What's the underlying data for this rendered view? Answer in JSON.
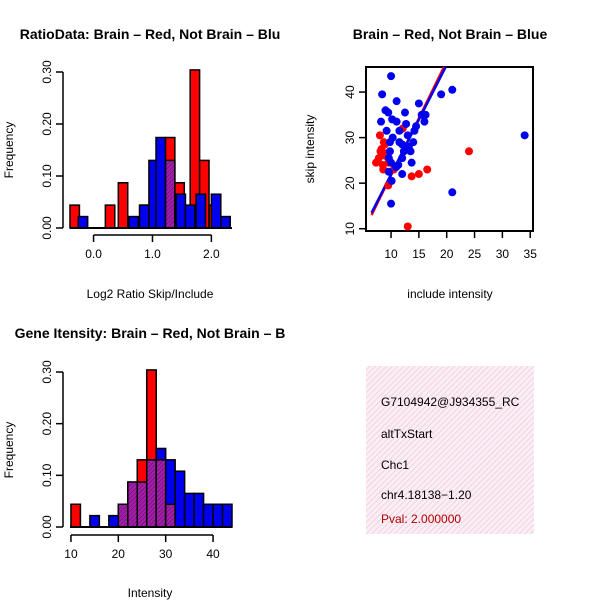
{
  "colors": {
    "red": "#ff0000",
    "blue": "#0000ee",
    "overlap": "#9a1aa0",
    "info_bg": "#f8e6f0",
    "pval": "#b00000"
  },
  "chart_data": [
    {
      "id": "ratio_hist",
      "type": "bar",
      "title": "RatioData: Brain – Red, Not Brain – Blu",
      "xlabel": "Log2 Ratio Skip/Include",
      "ylabel": "Frequency",
      "xlim": [
        -0.4,
        2.35
      ],
      "ylim": [
        0,
        0.3
      ],
      "xticks": [
        0.0,
        1.0,
        2.0
      ],
      "xtick_labels": [
        "0.0",
        "1.0",
        "2.0"
      ],
      "yticks": [
        0.0,
        0.1,
        0.2,
        0.3
      ],
      "ytick_labels": [
        "0.00",
        "0.10",
        "0.20",
        "0.30"
      ],
      "bin_width": 0.16,
      "series": [
        {
          "name": "Brain",
          "color": "red",
          "bins": [
            [
              -0.4,
              0.044
            ],
            [
              0.2,
              0.044
            ],
            [
              0.42,
              0.087
            ],
            [
              0.8,
              0.044
            ],
            [
              1.22,
              0.174
            ],
            [
              1.38,
              0.087
            ],
            [
              1.64,
              0.304
            ],
            [
              1.8,
              0.13
            ],
            [
              1.96,
              0.044
            ]
          ]
        },
        {
          "name": "Not Brain",
          "color": "blue",
          "bins": [
            [
              -0.26,
              0.022
            ],
            [
              0.6,
              0.022
            ],
            [
              0.78,
              0.044
            ],
            [
              0.94,
              0.13
            ],
            [
              1.06,
              0.174
            ],
            [
              1.22,
              0.13
            ],
            [
              1.4,
              0.065
            ],
            [
              1.56,
              0.044
            ],
            [
              1.74,
              0.065
            ],
            [
              2.0,
              0.065
            ],
            [
              2.16,
              0.022
            ]
          ]
        }
      ]
    },
    {
      "id": "scatter",
      "type": "scatter",
      "title": "Brain – Red, Not Brain – Blue",
      "xlabel": "include intensity",
      "ylabel": "skip intensity",
      "xlim": [
        5.5,
        35.5
      ],
      "ylim": [
        9.5,
        45.5
      ],
      "xticks": [
        10,
        15,
        20,
        25,
        30,
        35
      ],
      "yticks": [
        10,
        20,
        30,
        40
      ],
      "series": [
        {
          "name": "Brain",
          "color": "red",
          "points": [
            [
              7.3,
              24.5
            ],
            [
              7.8,
              25.5
            ],
            [
              8.0,
              30.5
            ],
            [
              8.3,
              27.5
            ],
            [
              8.5,
              24.0
            ],
            [
              8.7,
              29.0
            ],
            [
              8.9,
              28.5
            ],
            [
              9.0,
              26.0
            ],
            [
              9.3,
              26.5
            ],
            [
              9.5,
              24.5
            ],
            [
              9.5,
              19.5
            ],
            [
              8.6,
              23.0
            ],
            [
              10.5,
              23.0
            ],
            [
              12.1,
              32.0
            ],
            [
              13.0,
              10.5
            ],
            [
              13.7,
              21.5
            ],
            [
              15.0,
              22.0
            ],
            [
              16.5,
              23.0
            ],
            [
              24.0,
              27.0
            ],
            [
              8.1,
              27.0
            ]
          ]
        },
        {
          "name": "Not Brain",
          "color": "blue",
          "points": [
            [
              8.4,
              39.5
            ],
            [
              8.2,
              33.5
            ],
            [
              9.0,
              36.0
            ],
            [
              9.2,
              31.5
            ],
            [
              9.5,
              35.5
            ],
            [
              10.0,
              43.5
            ],
            [
              10.2,
              34.0
            ],
            [
              9.8,
              29.0
            ],
            [
              9.8,
              27.0
            ],
            [
              9.6,
              25.5
            ],
            [
              10.3,
              30.0
            ],
            [
              10.0,
              24.5
            ],
            [
              9.6,
              22.5
            ],
            [
              10.1,
              20.5
            ],
            [
              10.0,
              15.5
            ],
            [
              11.0,
              38.0
            ],
            [
              11.0,
              33.5
            ],
            [
              11.5,
              31.5
            ],
            [
              11.3,
              24.0
            ],
            [
              11.5,
              29.0
            ],
            [
              12.0,
              28.5
            ],
            [
              12.0,
              25.5
            ],
            [
              12.0,
              22.0
            ],
            [
              12.3,
              27.0
            ],
            [
              12.5,
              35.5
            ],
            [
              12.7,
              33.0
            ],
            [
              13.0,
              30.5
            ],
            [
              13.2,
              28.0
            ],
            [
              13.5,
              27.0
            ],
            [
              13.7,
              24.5
            ],
            [
              14.0,
              29.0
            ],
            [
              14.2,
              31.5
            ],
            [
              14.5,
              32.5
            ],
            [
              15.0,
              37.5
            ],
            [
              15.5,
              35.0
            ],
            [
              16.0,
              33.5
            ],
            [
              16.2,
              35.0
            ],
            [
              10.9,
              23.5
            ],
            [
              19.0,
              39.5
            ],
            [
              21.0,
              40.5
            ],
            [
              21.0,
              18.0
            ],
            [
              34.0,
              30.5
            ]
          ]
        }
      ],
      "lines": [
        {
          "name": "Brain fit",
          "color": "red",
          "from": [
            6.5,
            13.0
          ],
          "to": [
            19.5,
            45.5
          ]
        },
        {
          "name": "Not Brain fit",
          "color": "blue",
          "from": [
            6.5,
            13.5
          ],
          "to": [
            19.8,
            45.5
          ]
        }
      ]
    },
    {
      "id": "intensity_hist",
      "type": "bar",
      "title": "Gene Itensity: Brain – Red, Not Brain – B",
      "xlabel": "Intensity",
      "ylabel": "Frequency",
      "xlim": [
        9.8,
        44
      ],
      "ylim": [
        0,
        0.3
      ],
      "xticks": [
        10,
        20,
        30,
        40
      ],
      "yticks": [
        0.0,
        0.1,
        0.2,
        0.3
      ],
      "ytick_labels": [
        "0.00",
        "0.10",
        "0.20",
        "0.30"
      ],
      "bin_width": 2,
      "series": [
        {
          "name": "Brain",
          "color": "red",
          "bins": [
            [
              10,
              0.044
            ],
            [
              20,
              0.044
            ],
            [
              22,
              0.087
            ],
            [
              24,
              0.13
            ],
            [
              26,
              0.304
            ],
            [
              28,
              0.13
            ],
            [
              30,
              0.044
            ]
          ]
        },
        {
          "name": "Not Brain",
          "color": "blue",
          "bins": [
            [
              14,
              0.022
            ],
            [
              18,
              0.022
            ],
            [
              20,
              0.044
            ],
            [
              22,
              0.087
            ],
            [
              24,
              0.087
            ],
            [
              26,
              0.13
            ],
            [
              28,
              0.152
            ],
            [
              30,
              0.13
            ],
            [
              32,
              0.108
            ],
            [
              34,
              0.065
            ],
            [
              36,
              0.065
            ],
            [
              38,
              0.044
            ],
            [
              40,
              0.044
            ],
            [
              42,
              0.044
            ]
          ]
        }
      ]
    }
  ],
  "info": {
    "probe": "G7104942@J934355_RC",
    "event_type": "altTxStart",
    "gene": "Chc1",
    "location": "chr4.18138−1.20",
    "pval": "Pval: 2.000000"
  }
}
